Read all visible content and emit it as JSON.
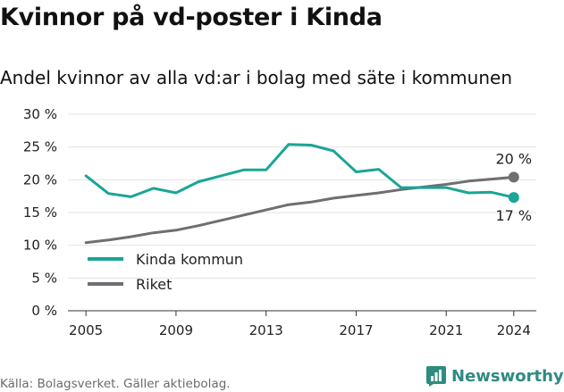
{
  "title": "Kvinnor på vd-poster i Kinda",
  "subtitle": "Andel kvinnor av alla vd:ar i bolag med säte i kommunen",
  "source": "Källa: Bolagsverket. Gäller aktiebolag.",
  "brand": "Newsworthy",
  "colors": {
    "kinda": "#1aa596",
    "riket": "#6e6e73",
    "grid": "#e3e3e3",
    "brand": "#2e8b80"
  },
  "chart_data": {
    "type": "line",
    "title": "Kvinnor på vd-poster i Kinda",
    "subtitle": "Andel kvinnor av alla vd:ar i bolag med säte i kommunen",
    "xlabel": "",
    "ylabel": "",
    "xlim": [
      2004.2,
      2025
    ],
    "ylim": [
      0,
      30
    ],
    "grid": true,
    "legend": "bottom-left",
    "x_ticks": [
      2005,
      2009,
      2013,
      2017,
      2021,
      2024
    ],
    "y_ticks": [
      0,
      5,
      10,
      15,
      20,
      25,
      30
    ],
    "y_tick_labels": [
      "0 %",
      "5 %",
      "10 %",
      "15 %",
      "20 %",
      "25 %",
      "30 %"
    ],
    "x": [
      2005,
      2006,
      2007,
      2008,
      2009,
      2010,
      2011,
      2012,
      2013,
      2014,
      2015,
      2016,
      2017,
      2018,
      2019,
      2020,
      2021,
      2022,
      2023,
      2024
    ],
    "series": [
      {
        "name": "Kinda kommun",
        "color": "#1aa596",
        "end_label": "17 %",
        "values": [
          20.6,
          17.9,
          17.4,
          18.7,
          18.0,
          19.7,
          20.6,
          21.5,
          21.5,
          25.4,
          25.3,
          24.4,
          21.2,
          21.6,
          18.8,
          18.8,
          18.8,
          18.0,
          18.1,
          17.3
        ]
      },
      {
        "name": "Riket",
        "color": "#6e6e73",
        "end_label": "20 %",
        "values": [
          10.4,
          10.8,
          11.3,
          11.9,
          12.3,
          13.0,
          13.8,
          14.6,
          15.4,
          16.2,
          16.6,
          17.2,
          17.6,
          18.0,
          18.5,
          18.9,
          19.3,
          19.8,
          20.1,
          20.4
        ]
      }
    ]
  }
}
